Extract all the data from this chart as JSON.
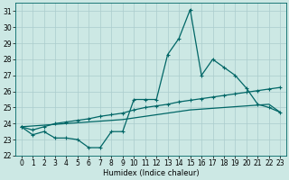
{
  "title": "",
  "xlabel": "Humidex (Indice chaleur)",
  "bg_color": "#cce8e4",
  "grid_color": "#aacccc",
  "line_color": "#006666",
  "xlim": [
    -0.5,
    23.5
  ],
  "ylim": [
    22,
    31.5
  ],
  "yticks": [
    22,
    23,
    24,
    25,
    26,
    27,
    28,
    29,
    30,
    31
  ],
  "xticks": [
    0,
    1,
    2,
    3,
    4,
    5,
    6,
    7,
    8,
    9,
    10,
    11,
    12,
    13,
    14,
    15,
    16,
    17,
    18,
    19,
    20,
    21,
    22,
    23
  ],
  "line1_x": [
    0,
    1,
    2,
    3,
    4,
    5,
    6,
    7,
    8,
    9,
    10,
    11,
    12,
    13,
    14,
    15,
    16,
    17,
    18,
    19,
    20,
    21,
    22,
    23
  ],
  "line1_y": [
    23.8,
    23.3,
    23.5,
    23.1,
    23.1,
    23.0,
    22.5,
    22.5,
    23.5,
    23.5,
    25.5,
    25.5,
    25.5,
    28.3,
    29.3,
    31.1,
    27.0,
    28.0,
    27.5,
    27.0,
    26.2,
    25.2,
    25.0,
    24.7
  ],
  "line2_x": [
    0,
    1,
    2,
    3,
    4,
    5,
    6,
    7,
    8,
    9,
    10,
    11,
    12,
    13,
    14,
    15,
    16,
    17,
    18,
    19,
    20,
    21,
    22,
    23
  ],
  "line2_y": [
    23.8,
    23.6,
    23.8,
    24.0,
    24.1,
    24.2,
    24.3,
    24.45,
    24.55,
    24.65,
    24.85,
    25.0,
    25.1,
    25.2,
    25.35,
    25.45,
    25.55,
    25.65,
    25.75,
    25.85,
    25.95,
    26.05,
    26.15,
    26.25
  ],
  "line3_x": [
    0,
    1,
    2,
    3,
    4,
    5,
    6,
    7,
    8,
    9,
    10,
    11,
    12,
    13,
    14,
    15,
    16,
    17,
    18,
    19,
    20,
    21,
    22,
    23
  ],
  "line3_y": [
    23.8,
    23.85,
    23.9,
    23.95,
    24.0,
    24.05,
    24.1,
    24.15,
    24.2,
    24.25,
    24.35,
    24.45,
    24.55,
    24.65,
    24.75,
    24.85,
    24.9,
    24.95,
    25.0,
    25.05,
    25.1,
    25.15,
    25.2,
    24.7
  ],
  "marker": "+",
  "markersize": 3,
  "linewidth": 0.9,
  "tick_labelsize": 5.5,
  "xlabel_fontsize": 6
}
